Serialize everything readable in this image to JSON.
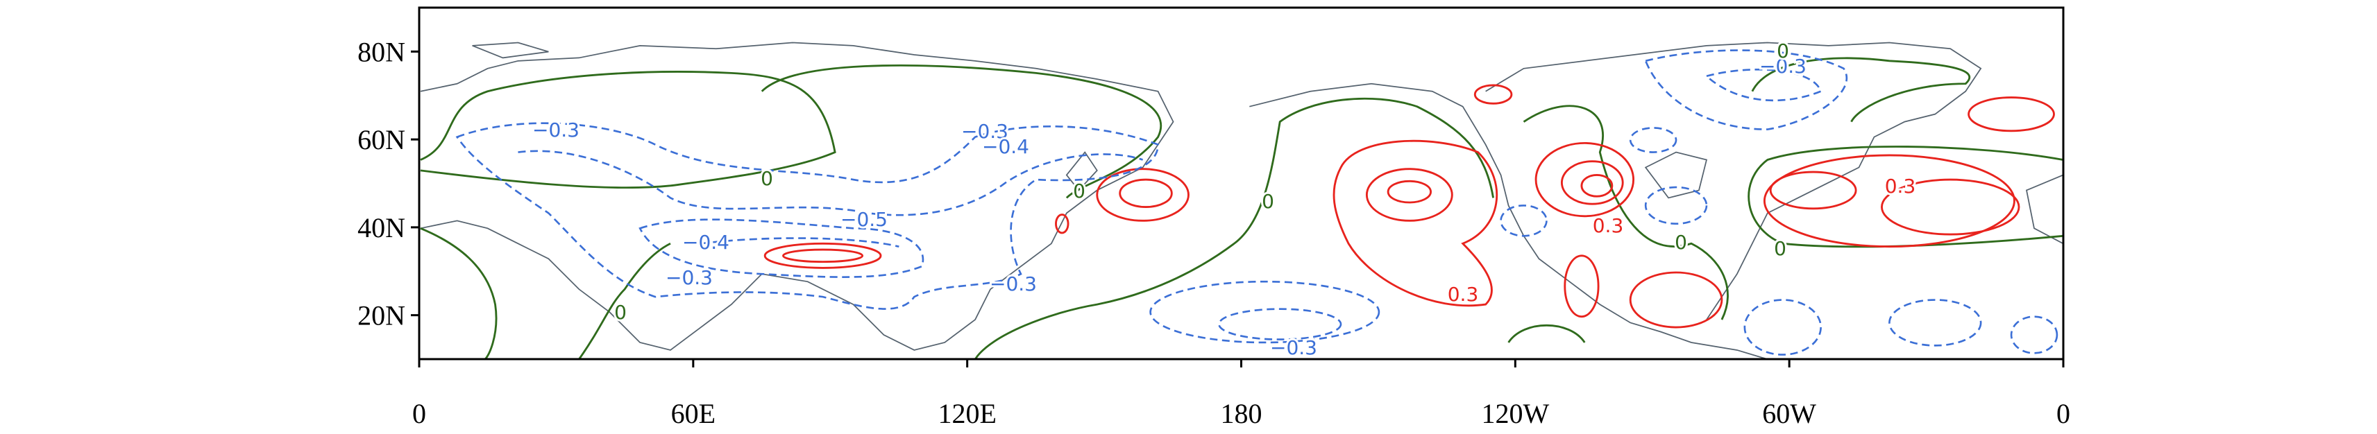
{
  "chart_data": {
    "type": "contour-map",
    "xlim": [
      0,
      360
    ],
    "xticks": [
      0,
      {
        "value": 60,
        "label": "60E"
      },
      {
        "value": 120,
        "label": "120E"
      },
      180,
      {
        "value": 240,
        "label": "120W"
      },
      {
        "value": 300,
        "label": "60W"
      },
      {
        "value": 360,
        "label": "0"
      }
    ],
    "ylim": [
      10,
      90
    ],
    "yticks": [
      {
        "value": 20,
        "label": "20N"
      },
      {
        "value": 40,
        "label": "40N"
      },
      {
        "value": 60,
        "label": "60N"
      },
      {
        "value": 80,
        "label": "80N"
      }
    ],
    "contour_labels": [
      "−0.3",
      "−0.3",
      "−0.4",
      "−0.5",
      "−0.4",
      "−0.3",
      "−0.3",
      "−0.3",
      "−0.3",
      "0.3",
      "0.3",
      "0.3",
      "0",
      "0",
      "0",
      "0",
      "0",
      "0",
      "0"
    ]
  }
}
